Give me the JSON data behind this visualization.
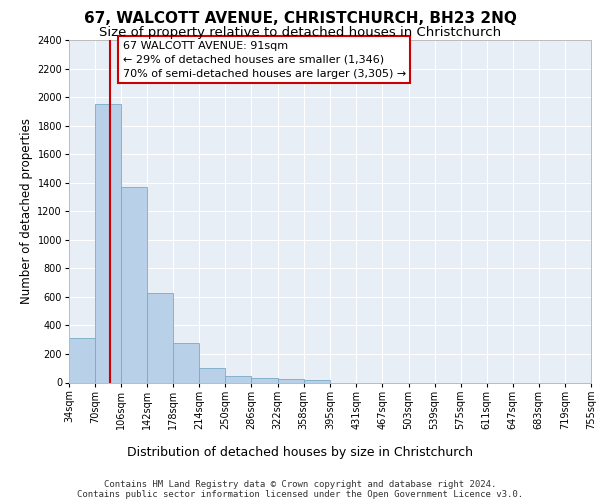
{
  "title": "67, WALCOTT AVENUE, CHRISTCHURCH, BH23 2NQ",
  "subtitle": "Size of property relative to detached houses in Christchurch",
  "xlabel": "Distribution of detached houses by size in Christchurch",
  "ylabel": "Number of detached properties",
  "bar_edges": [
    34,
    70,
    106,
    142,
    178,
    214,
    250,
    286,
    322,
    358,
    395,
    431,
    467,
    503,
    539,
    575,
    611,
    647,
    683,
    719,
    755
  ],
  "bar_heights": [
    315,
    1950,
    1370,
    630,
    275,
    100,
    48,
    30,
    25,
    20,
    0,
    0,
    0,
    0,
    0,
    0,
    0,
    0,
    0,
    0
  ],
  "bar_color": "#b8d0e8",
  "bar_edge_color": "#7aaac8",
  "property_size": 91,
  "red_line_color": "#cc0000",
  "annotation_line1": "67 WALCOTT AVENUE: 91sqm",
  "annotation_line2": "← 29% of detached houses are smaller (1,346)",
  "annotation_line3": "70% of semi-detached houses are larger (3,305) →",
  "annotation_box_color": "#ffffff",
  "annotation_border_color": "#cc0000",
  "ylim_max": 2400,
  "yticks": [
    0,
    200,
    400,
    600,
    800,
    1000,
    1200,
    1400,
    1600,
    1800,
    2000,
    2200,
    2400
  ],
  "plot_bg_color": "#e8eef5",
  "grid_color": "#ffffff",
  "footer_line1": "Contains HM Land Registry data © Crown copyright and database right 2024.",
  "footer_line2": "Contains public sector information licensed under the Open Government Licence v3.0.",
  "title_fontsize": 11,
  "subtitle_fontsize": 9.5,
  "ylabel_fontsize": 8.5,
  "xlabel_fontsize": 9,
  "tick_fontsize": 7,
  "annotation_fontsize": 8,
  "footer_fontsize": 6.5
}
